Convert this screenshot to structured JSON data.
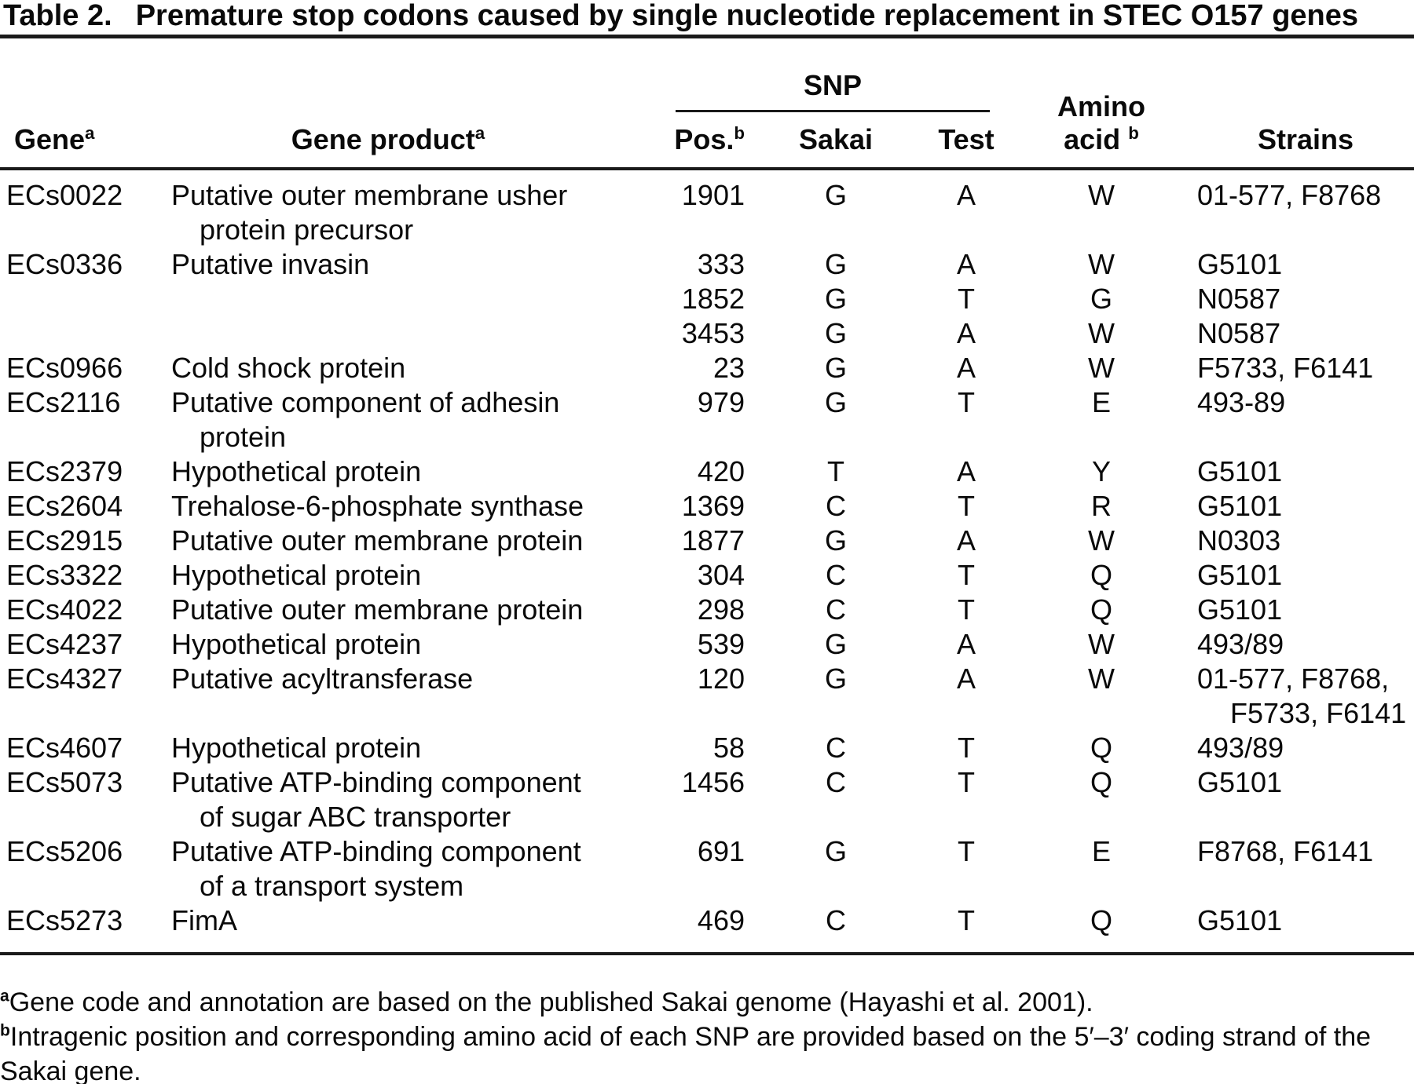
{
  "title": {
    "label": "Table 2.",
    "text": "Premature stop codons caused by single nucleotide replacement in STEC O157 genes"
  },
  "header": {
    "gene": {
      "label": "Gene",
      "sup": "a"
    },
    "gene_product": {
      "label": "Gene product",
      "sup": "a"
    },
    "snp_group": "SNP",
    "pos": {
      "label": "Pos.",
      "sup": "b"
    },
    "sakai": "Sakai",
    "test": "Test",
    "amino_acid": {
      "line1": "Amino",
      "line2": "acid",
      "sup": "b"
    },
    "strains": "Strains"
  },
  "table": {
    "rows": [
      {
        "gene": "ECs0022",
        "product": "Putative outer membrane usher\nprotein precursor",
        "pos": "1901",
        "sakai": "G",
        "test": "A",
        "amino_acid": "W",
        "strains": "01-577, F8768"
      },
      {
        "gene": "ECs0336",
        "product": "Putative invasin",
        "pos": "333",
        "sakai": "G",
        "test": "A",
        "amino_acid": "W",
        "strains": "G5101"
      },
      {
        "gene": "",
        "product": "",
        "pos": "1852",
        "sakai": "G",
        "test": "T",
        "amino_acid": "G",
        "strains": "N0587"
      },
      {
        "gene": "",
        "product": "",
        "pos": "3453",
        "sakai": "G",
        "test": "A",
        "amino_acid": "W",
        "strains": "N0587"
      },
      {
        "gene": "ECs0966",
        "product": "Cold shock protein",
        "pos": "23",
        "sakai": "G",
        "test": "A",
        "amino_acid": "W",
        "strains": "F5733, F6141"
      },
      {
        "gene": "ECs2116",
        "product": "Putative component of adhesin\nprotein",
        "pos": "979",
        "sakai": "G",
        "test": "T",
        "amino_acid": "E",
        "strains": "493-89"
      },
      {
        "gene": "ECs2379",
        "product": "Hypothetical protein",
        "pos": "420",
        "sakai": "T",
        "test": "A",
        "amino_acid": "Y",
        "strains": "G5101"
      },
      {
        "gene": "ECs2604",
        "product": "Trehalose-6-phosphate synthase",
        "pos": "1369",
        "sakai": "C",
        "test": "T",
        "amino_acid": "R",
        "strains": "G5101"
      },
      {
        "gene": "ECs2915",
        "product": "Putative outer membrane protein",
        "pos": "1877",
        "sakai": "G",
        "test": "A",
        "amino_acid": "W",
        "strains": "N0303"
      },
      {
        "gene": "ECs3322",
        "product": "Hypothetical protein",
        "pos": "304",
        "sakai": "C",
        "test": "T",
        "amino_acid": "Q",
        "strains": "G5101"
      },
      {
        "gene": "ECs4022",
        "product": "Putative outer membrane protein",
        "pos": "298",
        "sakai": "C",
        "test": "T",
        "amino_acid": "Q",
        "strains": "G5101"
      },
      {
        "gene": "ECs4237",
        "product": "Hypothetical protein",
        "pos": "539",
        "sakai": "G",
        "test": "A",
        "amino_acid": "W",
        "strains": "493/89"
      },
      {
        "gene": "ECs4327",
        "product": "Putative acyltransferase",
        "pos": "120",
        "sakai": "G",
        "test": "A",
        "amino_acid": "W",
        "strains": "01-577, F8768,\nF5733, F6141"
      },
      {
        "gene": "ECs4607",
        "product": "Hypothetical protein",
        "pos": "58",
        "sakai": "C",
        "test": "T",
        "amino_acid": "Q",
        "strains": "493/89"
      },
      {
        "gene": "ECs5073",
        "product": "Putative ATP-binding component\nof sugar ABC transporter",
        "pos": "1456",
        "sakai": "C",
        "test": "T",
        "amino_acid": "Q",
        "strains": "G5101"
      },
      {
        "gene": "ECs5206",
        "product": "Putative ATP-binding component\nof a transport system",
        "pos": "691",
        "sakai": "G",
        "test": "T",
        "amino_acid": "E",
        "strains": "F8768, F6141"
      },
      {
        "gene": "ECs5273",
        "product": "FimA",
        "pos": "469",
        "sakai": "C",
        "test": "T",
        "amino_acid": "Q",
        "strains": "G5101"
      }
    ]
  },
  "footnotes": [
    {
      "sup": "a",
      "text": "Gene code and annotation are based on the published Sakai genome (Hayashi et al. 2001)."
    },
    {
      "sup": "b",
      "text": "Intragenic position and corresponding amino acid of each SNP are provided based on the 5′–3′ coding strand of the Sakai gene."
    }
  ]
}
